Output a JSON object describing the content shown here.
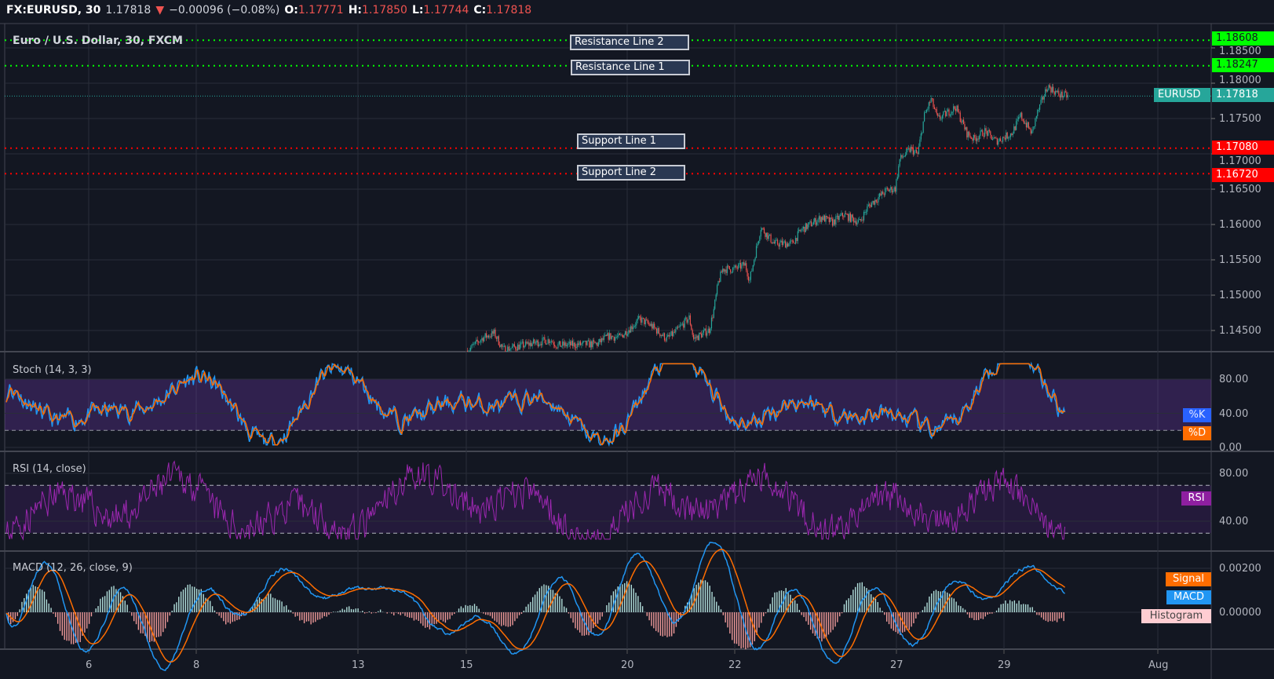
{
  "header": {
    "symbol": "FX:EURUSD, 30",
    "last": "1.17818",
    "change": "−0.00096 (−0.08%)",
    "o_label": "O:",
    "o": "1.17771",
    "h_label": "H:",
    "h": "1.17850",
    "l_label": "L:",
    "l": "1.17744",
    "c_label": "C:",
    "c": "1.17818",
    "direction_icon": "triangle-down-icon"
  },
  "main": {
    "title": "Euro / U.S. Dollar, 30, FXCM",
    "lines": [
      {
        "label": "Resistance Line 2",
        "price": 1.18608,
        "price_text": "1.18608",
        "color": "#00ff00"
      },
      {
        "label": "Resistance Line 1",
        "price": 1.18247,
        "price_text": "1.18247",
        "color": "#00ff00"
      },
      {
        "label": "Support Line 1",
        "price": 1.1708,
        "price_text": "1.17080",
        "color": "#ff0000"
      },
      {
        "label": "Support Line 2",
        "price": 1.1672,
        "price_text": "1.16720",
        "color": "#ff0000"
      }
    ],
    "current": {
      "symbol": "EURUSD",
      "price": 1.17818,
      "price_text": "1.17818",
      "color": "#26a69a"
    }
  },
  "stoch": {
    "title": "Stoch (14, 3, 3)",
    "k_label": "%K",
    "d_label": "%D",
    "k_color": "#2196f3",
    "d_color": "#ff6d00"
  },
  "rsi": {
    "title": "RSI (14, close)",
    "label": "RSI",
    "color": "#9c27b0"
  },
  "macd": {
    "title": "MACD (12, 26, close, 9)",
    "signal_label": "Signal",
    "macd_label": "MACD",
    "hist_label": "Histogram",
    "macd_color": "#2196f3",
    "signal_color": "#ff6d00"
  },
  "colors": {
    "background": "#131722",
    "up": "#26a69a",
    "down": "#ef5350",
    "grid": "#2a2e39"
  },
  "chart_data": [
    {
      "type": "candlestick",
      "timeframe": "30",
      "y_ticks": [
        "1.18500",
        "1.18000",
        "1.17500",
        "1.17000",
        "1.16500",
        "1.16000",
        "1.15500",
        "1.15000",
        "1.14500"
      ],
      "x_ticks": [
        "6",
        "8",
        "13",
        "15",
        "20",
        "22",
        "27",
        "29",
        "Aug"
      ],
      "approx_close_path": [
        [
          "Jul 15 01:00",
          1.1421
        ],
        [
          "Jul 15 08:00",
          1.144
        ],
        [
          "Jul 15 13:00",
          1.1446
        ],
        [
          "Jul 15 17:00",
          1.1423
        ],
        [
          "Jul 16 14:00",
          1.1437
        ],
        [
          "Jul 16 17:00",
          1.1429
        ],
        [
          "Jul 17 11:00",
          1.1431
        ],
        [
          "Jul 17 16:00",
          1.1442
        ],
        [
          "Jul 17 21:00",
          1.144
        ],
        [
          "Jul 20 06:00",
          1.1466
        ],
        [
          "Jul 20 11:00",
          1.1457
        ],
        [
          "Jul 20 18:00",
          1.1438
        ],
        [
          "Jul 20 22:00",
          1.1448
        ],
        [
          "Jul 21 04:00",
          1.1468
        ],
        [
          "Jul 21 06:00",
          1.1438
        ],
        [
          "Jul 21 13:00",
          1.1451
        ],
        [
          "Jul 21 15:00",
          1.1479
        ],
        [
          "Jul 21 17:00",
          1.1518
        ],
        [
          "Jul 21 19:00",
          1.1537
        ],
        [
          "Jul 22 00:00",
          1.1537
        ],
        [
          "Jul 22 05:00",
          1.1543
        ],
        [
          "Jul 22 07:00",
          1.1521
        ],
        [
          "Jul 22 09:00",
          1.1551
        ],
        [
          "Jul 22 12:00",
          1.1596
        ],
        [
          "Jul 22 18:00",
          1.1573
        ],
        [
          "Jul 23 02:00",
          1.1573
        ],
        [
          "Jul 23 06:00",
          1.1592
        ],
        [
          "Jul 23 15:00",
          1.161
        ],
        [
          "Jul 23 20:00",
          1.1603
        ],
        [
          "Jul 24 01:00",
          1.1614
        ],
        [
          "Jul 24 08:00",
          1.1603
        ],
        [
          "Jul 24 12:00",
          1.1626
        ],
        [
          "Jul 24 20:00",
          1.1648
        ],
        [
          "Jul 27 00:00",
          1.1651
        ],
        [
          "Jul 27 02:00",
          1.1692
        ],
        [
          "Jul 27 07:00",
          1.1707
        ],
        [
          "Jul 27 10:00",
          1.1699
        ],
        [
          "Jul 27 13:00",
          1.1754
        ],
        [
          "Jul 27 16:00",
          1.1777
        ],
        [
          "Jul 27 19:00",
          1.1749
        ],
        [
          "Jul 28 03:00",
          1.1766
        ],
        [
          "Jul 28 08:00",
          1.1729
        ],
        [
          "Jul 28 11:00",
          1.1721
        ],
        [
          "Jul 28 16:00",
          1.1732
        ],
        [
          "Jul 28 21:00",
          1.1718
        ],
        [
          "Jul 29 04:00",
          1.1729
        ],
        [
          "Jul 29 08:00",
          1.1754
        ],
        [
          "Jul 29 13:00",
          1.1729
        ],
        [
          "Jul 29 15:00",
          1.1754
        ],
        [
          "Jul 29 20:00",
          1.1796
        ],
        [
          "Jul 30 01:00",
          1.1784
        ],
        [
          "Jul 30 05:00",
          1.17818
        ]
      ],
      "ylim": [
        1.142,
        1.1884
      ]
    },
    {
      "type": "line",
      "name": "Stoch",
      "y_ticks": [
        "80.00",
        "40.00",
        "0.00"
      ],
      "bands": [
        20,
        80
      ],
      "ylim": [
        0,
        100
      ]
    },
    {
      "type": "line",
      "name": "RSI",
      "y_ticks": [
        "80.00",
        "40.00"
      ],
      "bands": [
        30,
        70
      ],
      "ylim": [
        20,
        95
      ]
    },
    {
      "type": "line",
      "name": "MACD",
      "y_ticks": [
        "0.00200",
        "0.00000"
      ],
      "ylim": [
        -0.0013,
        0.0028
      ]
    }
  ]
}
